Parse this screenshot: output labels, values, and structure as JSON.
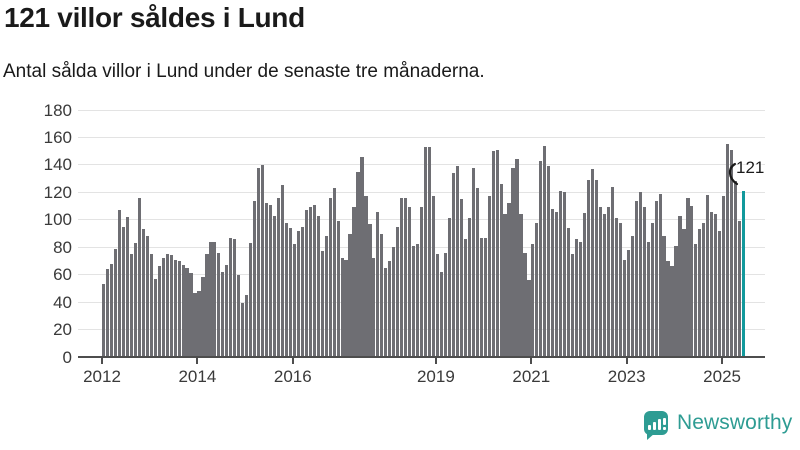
{
  "title": "121 villor såldes i Lund",
  "subtitle": "Antal sålda villor i Lund under de senaste tre månaderna.",
  "annotation": {
    "label": "121"
  },
  "branding": {
    "name": "Newsworthy",
    "icon": "chart-speech-bubble-icon"
  },
  "colors": {
    "bar": "#6e6e73",
    "highlight": "#12999c",
    "brand": "#2e9c93",
    "grid": "#e3e3e3",
    "axis": "#4d4d4d",
    "text": "#1a1a1a",
    "tick_text": "#3a3a3a"
  },
  "chart_data": {
    "type": "bar",
    "title": "121 villor såldes i Lund",
    "subtitle": "Antal sålda villor i Lund under de senaste tre månaderna.",
    "xlabel": "",
    "ylabel": "",
    "ylim": [
      0,
      180
    ],
    "grid": true,
    "y_ticks": [
      0,
      20,
      40,
      60,
      80,
      100,
      120,
      140,
      160,
      180
    ],
    "x_ticks": [
      {
        "label": "2012",
        "month_index": 0
      },
      {
        "label": "2014",
        "month_index": 24
      },
      {
        "label": "2016",
        "month_index": 48
      },
      {
        "label": "2019",
        "month_index": 84
      },
      {
        "label": "2021",
        "month_index": 108
      },
      {
        "label": "2023",
        "month_index": 132
      },
      {
        "label": "2025",
        "month_index": 156
      }
    ],
    "start_month": "2012-01",
    "end_month": "2025-06",
    "highlight_last_bar": true,
    "highlight_value": 121,
    "values": [
      53,
      64,
      68,
      79,
      107,
      95,
      102,
      75,
      83,
      116,
      93,
      88,
      75,
      57,
      66,
      72,
      75,
      74,
      71,
      70,
      67,
      65,
      61,
      47,
      48,
      58,
      75,
      84,
      84,
      76,
      62,
      67,
      87,
      86,
      60,
      39,
      45,
      83,
      114,
      138,
      140,
      112,
      111,
      103,
      116,
      125,
      98,
      94,
      82,
      92,
      95,
      107,
      109,
      111,
      103,
      77,
      88,
      116,
      123,
      99,
      72,
      71,
      90,
      109,
      135,
      146,
      117,
      97,
      72,
      106,
      90,
      65,
      70,
      80,
      95,
      116,
      116,
      109,
      81,
      82,
      109,
      153,
      153,
      117,
      75,
      62,
      76,
      101,
      134,
      139,
      115,
      86,
      101,
      138,
      123,
      87,
      87,
      117,
      150,
      151,
      126,
      104,
      112,
      138,
      144,
      104,
      76,
      56,
      82,
      98,
      143,
      154,
      139,
      108,
      106,
      121,
      120,
      94,
      75,
      86,
      84,
      105,
      129,
      137,
      129,
      109,
      104,
      109,
      124,
      101,
      98,
      71,
      78,
      88,
      114,
      120,
      109,
      84,
      98,
      114,
      119,
      88,
      70,
      66,
      81,
      103,
      93,
      116,
      110,
      82,
      93,
      98,
      118,
      106,
      104,
      92,
      117,
      155,
      151,
      128,
      99,
      121
    ]
  }
}
